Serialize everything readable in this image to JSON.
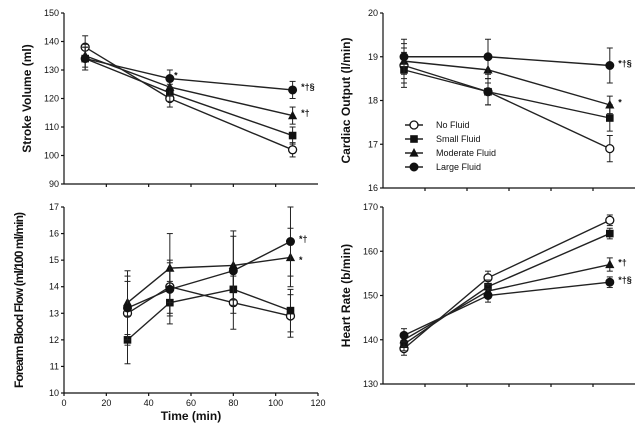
{
  "legend": [
    {
      "label": "No Fluid",
      "marker": "open-circle"
    },
    {
      "label": "Small Fluid",
      "marker": "square"
    },
    {
      "label": "Moderate Fluid",
      "marker": "triangle"
    },
    {
      "label": "Large Fluid",
      "marker": "filled-circle"
    }
  ],
  "chart_data": [
    {
      "type": "line",
      "panel": "top-left",
      "ylabel": "Stroke Volume (ml)",
      "ylim": [
        90,
        150
      ],
      "yticks": [
        90,
        100,
        110,
        120,
        130,
        140,
        150
      ],
      "xlim": [
        0,
        120
      ],
      "x": [
        10,
        50,
        108
      ],
      "series": [
        {
          "name": "No Fluid",
          "marker": "open-circle",
          "values": [
            138,
            120,
            102
          ],
          "err": [
            4,
            3,
            2.5
          ]
        },
        {
          "name": "Small Fluid",
          "marker": "square",
          "values": [
            134,
            122,
            107
          ],
          "err": [
            4,
            3,
            3
          ]
        },
        {
          "name": "Moderate Fluid",
          "marker": "triangle",
          "values": [
            135,
            124,
            114
          ],
          "err": [
            4,
            3,
            3
          ]
        },
        {
          "name": "Large Fluid",
          "marker": "filled-circle",
          "values": [
            134,
            127,
            123
          ],
          "err": [
            4,
            3,
            3
          ]
        }
      ],
      "annotations": [
        {
          "text": "*",
          "x": 52,
          "y": 128
        },
        {
          "text": "*†§",
          "x": 112,
          "y": 124
        },
        {
          "text": "*†",
          "x": 112,
          "y": 115
        }
      ]
    },
    {
      "type": "line",
      "panel": "top-right",
      "ylabel": "Cardiac Output (l/min)",
      "ylim": [
        16,
        20
      ],
      "yticks": [
        16,
        17,
        18,
        19,
        20
      ],
      "x": [
        10,
        50,
        108
      ],
      "series": [
        {
          "name": "No Fluid",
          "marker": "open-circle",
          "values": [
            18.8,
            18.2,
            16.9
          ],
          "err": [
            0.4,
            0.3,
            0.3
          ]
        },
        {
          "name": "Small Fluid",
          "marker": "square",
          "values": [
            18.7,
            18.2,
            17.6
          ],
          "err": [
            0.4,
            0.3,
            0.3
          ]
        },
        {
          "name": "Moderate Fluid",
          "marker": "triangle",
          "values": [
            18.9,
            18.7,
            17.9
          ],
          "err": [
            0.4,
            0.3,
            0.2
          ]
        },
        {
          "name": "Large Fluid",
          "marker": "filled-circle",
          "values": [
            19.0,
            19.0,
            18.8
          ],
          "err": [
            0.4,
            0.4,
            0.4
          ]
        }
      ],
      "annotations": [
        {
          "text": "*†§",
          "x": 112,
          "y": 18.85
        },
        {
          "text": "*",
          "x": 112,
          "y": 17.95
        }
      ]
    },
    {
      "type": "line",
      "panel": "bottom-left",
      "ylabel": "Forearm Blood Flow (ml/100 ml/min)",
      "xlabel": "Time (min)",
      "ylim": [
        10,
        17
      ],
      "yticks": [
        10,
        11,
        12,
        13,
        14,
        15,
        16,
        17
      ],
      "xlim": [
        0,
        120
      ],
      "xticks": [
        0,
        20,
        40,
        60,
        80,
        100,
        120
      ],
      "x": [
        30,
        50,
        80,
        107
      ],
      "series": [
        {
          "name": "No Fluid",
          "marker": "open-circle",
          "values": [
            13.0,
            14.0,
            13.4,
            12.9
          ],
          "err": [
            1.2,
            1.0,
            1.0,
            0.8
          ]
        },
        {
          "name": "Small Fluid",
          "marker": "square",
          "values": [
            12.0,
            13.4,
            13.9,
            13.1
          ],
          "err": [
            0.9,
            0.8,
            0.9,
            0.8
          ]
        },
        {
          "name": "Moderate Fluid",
          "marker": "triangle",
          "values": [
            13.4,
            14.7,
            14.8,
            15.1
          ],
          "err": [
            1.2,
            1.3,
            1.3,
            1.1
          ]
        },
        {
          "name": "Large Fluid",
          "marker": "filled-circle",
          "values": [
            13.2,
            13.9,
            14.6,
            15.7
          ],
          "err": [
            1.2,
            1.0,
            1.3,
            1.3
          ]
        }
      ],
      "annotations": [
        {
          "text": "*†",
          "x": 111,
          "y": 15.8
        },
        {
          "text": "*",
          "x": 111,
          "y": 15.0
        }
      ]
    },
    {
      "type": "line",
      "panel": "bottom-right",
      "ylabel": "Heart Rate (b/min)",
      "ylim": [
        130,
        170
      ],
      "yticks": [
        130,
        140,
        150,
        160,
        170
      ],
      "x": [
        10,
        50,
        108
      ],
      "series": [
        {
          "name": "No Fluid",
          "marker": "open-circle",
          "values": [
            138,
            154,
            167
          ],
          "err": [
            1.5,
            1.5,
            1.2
          ]
        },
        {
          "name": "Small Fluid",
          "marker": "square",
          "values": [
            139,
            152,
            164
          ],
          "err": [
            1.5,
            1.5,
            1.2
          ]
        },
        {
          "name": "Moderate Fluid",
          "marker": "triangle",
          "values": [
            140,
            151,
            157
          ],
          "err": [
            1.5,
            1.5,
            1.5
          ]
        },
        {
          "name": "Large Fluid",
          "marker": "filled-circle",
          "values": [
            141,
            150,
            153
          ],
          "err": [
            1.5,
            1.5,
            1.2
          ]
        }
      ],
      "annotations": [
        {
          "text": "*†",
          "x": 112,
          "y": 157.5
        },
        {
          "text": "*†§",
          "x": 112,
          "y": 153.5
        }
      ]
    }
  ]
}
